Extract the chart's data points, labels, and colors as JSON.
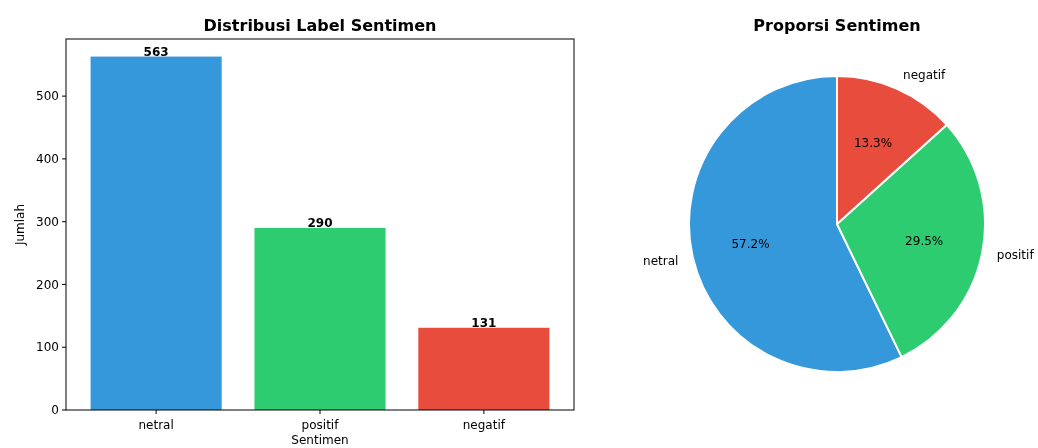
{
  "chart_data": [
    {
      "type": "bar",
      "title": "Distribusi Label Sentimen",
      "xlabel": "Sentimen",
      "ylabel": "Jumlah",
      "categories": [
        "netral",
        "positif",
        "negatif"
      ],
      "values": [
        563,
        290,
        131
      ],
      "colors": [
        "#3498db",
        "#2ecc71",
        "#e74c3c"
      ],
      "ylim": [
        0,
        591
      ],
      "yticks": [
        0,
        100,
        200,
        300,
        400,
        500
      ],
      "data_labels": true
    },
    {
      "type": "pie",
      "title": "Proporsi Sentimen",
      "categories": [
        "netral",
        "positif",
        "negatif"
      ],
      "values": [
        57.2,
        29.5,
        13.3
      ],
      "colors": [
        "#3498db",
        "#2ecc71",
        "#e74c3c"
      ],
      "value_labels": [
        "57.2%",
        "29.5%",
        "13.3%"
      ]
    }
  ]
}
